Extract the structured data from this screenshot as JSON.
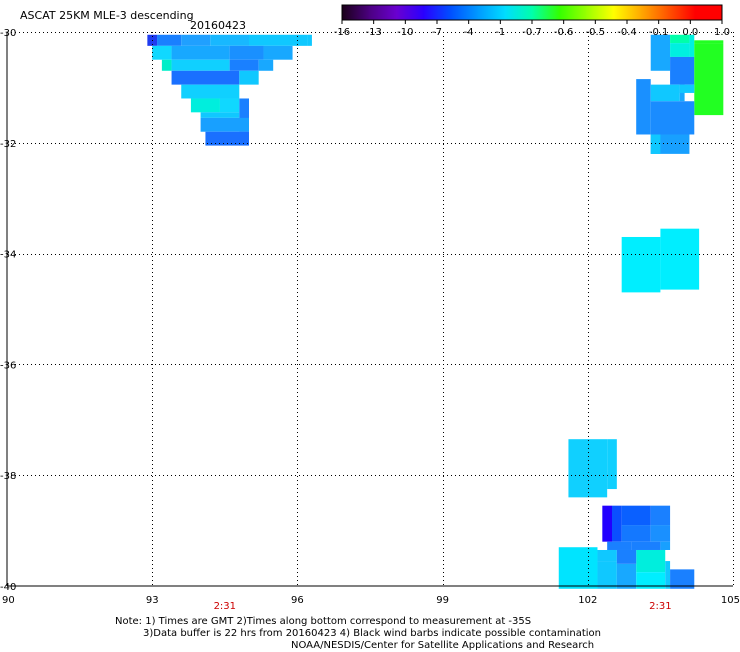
{
  "header": {
    "title": "ASCAT 25KM MLE-3 descending",
    "date": "20160423"
  },
  "colorbar": {
    "ticks": [
      "-16",
      "-13",
      "-10",
      "-7",
      "-4",
      "-1",
      "-0.7",
      "-0.6",
      "-0.5",
      "-0.4",
      "-0.1",
      "0.0",
      "1.0"
    ],
    "colors": [
      "#1a0018",
      "#4b0080",
      "#6a00d0",
      "#2a00ff",
      "#0050ff",
      "#0099ff",
      "#00ddff",
      "#00ffaa",
      "#33ff00",
      "#99ff00",
      "#ffff00",
      "#ffaa00",
      "#ff5500",
      "#ff0000"
    ]
  },
  "chart_data": {
    "type": "heatmap",
    "xlim": [
      90,
      105
    ],
    "ylim": [
      -40,
      -30
    ],
    "x_ticks": [
      "90",
      "93",
      "96",
      "99",
      "102",
      "105"
    ],
    "y_ticks": [
      "-30",
      "-32",
      "-34",
      "-36",
      "-38",
      "-40"
    ],
    "grid": true,
    "time_labels": [
      {
        "lon": 94.5,
        "text": "2:31"
      },
      {
        "lon": 103.5,
        "text": "2:31"
      }
    ],
    "cells": [
      {
        "lon0": 92.9,
        "lon1": 93.1,
        "lat0": -30.25,
        "lat1": -30.05,
        "color": "#1f3cf0"
      },
      {
        "lon0": 93.1,
        "lon1": 93.6,
        "lat0": -30.25,
        "lat1": -30.05,
        "color": "#1a80ff"
      },
      {
        "lon0": 93.6,
        "lon1": 94.2,
        "lat0": -30.25,
        "lat1": -30.05,
        "color": "#20a0ff"
      },
      {
        "lon0": 94.2,
        "lon1": 95.0,
        "lat0": -30.25,
        "lat1": -30.05,
        "color": "#18b8ff"
      },
      {
        "lon0": 95.0,
        "lon1": 96.2,
        "lat0": -30.25,
        "lat1": -30.05,
        "color": "#10c8ff"
      },
      {
        "lon0": 96.2,
        "lon1": 96.3,
        "lat0": -30.25,
        "lat1": -30.05,
        "color": "#10c8ff"
      },
      {
        "lon0": 93.0,
        "lon1": 93.4,
        "lat0": -30.5,
        "lat1": -30.25,
        "color": "#10d8ff"
      },
      {
        "lon0": 93.4,
        "lon1": 94.6,
        "lat0": -30.5,
        "lat1": -30.25,
        "color": "#18a8ff"
      },
      {
        "lon0": 94.6,
        "lon1": 95.3,
        "lat0": -30.5,
        "lat1": -30.25,
        "color": "#1a90ff"
      },
      {
        "lon0": 95.3,
        "lon1": 95.9,
        "lat0": -30.5,
        "lat1": -30.25,
        "color": "#18a8ff"
      },
      {
        "lon0": 93.2,
        "lon1": 93.4,
        "lat0": -30.7,
        "lat1": -30.5,
        "color": "#00eec8"
      },
      {
        "lon0": 93.4,
        "lon1": 94.6,
        "lat0": -30.7,
        "lat1": -30.5,
        "color": "#10d0ff"
      },
      {
        "lon0": 94.6,
        "lon1": 95.2,
        "lat0": -30.7,
        "lat1": -30.5,
        "color": "#1a80ff"
      },
      {
        "lon0": 95.2,
        "lon1": 95.5,
        "lat0": -30.7,
        "lat1": -30.5,
        "color": "#18a8ff"
      },
      {
        "lon0": 93.4,
        "lon1": 94.8,
        "lat0": -30.95,
        "lat1": -30.7,
        "color": "#1a70ff"
      },
      {
        "lon0": 94.8,
        "lon1": 95.2,
        "lat0": -30.95,
        "lat1": -30.7,
        "color": "#10c8ff"
      },
      {
        "lon0": 93.6,
        "lon1": 94.8,
        "lat0": -31.2,
        "lat1": -30.95,
        "color": "#10d0ff"
      },
      {
        "lon0": 93.8,
        "lon1": 94.4,
        "lat0": -31.45,
        "lat1": -31.2,
        "color": "#00eedd"
      },
      {
        "lon0": 94.4,
        "lon1": 94.8,
        "lat0": -31.45,
        "lat1": -31.2,
        "color": "#10d8ff"
      },
      {
        "lon0": 94.0,
        "lon1": 94.8,
        "lat0": -31.55,
        "lat1": -31.45,
        "color": "#10c8ff"
      },
      {
        "lon0": 94.8,
        "lon1": 95.0,
        "lat0": -31.8,
        "lat1": -31.2,
        "color": "#1a80ff"
      },
      {
        "lon0": 94.0,
        "lon1": 95.0,
        "lat0": -31.8,
        "lat1": -31.55,
        "color": "#18a0ff"
      },
      {
        "lon0": 94.1,
        "lon1": 95.0,
        "lat0": -32.05,
        "lat1": -31.8,
        "color": "#1a70ff"
      },
      {
        "lon0": 103.3,
        "lon1": 103.7,
        "lat0": -30.7,
        "lat1": -30.05,
        "color": "#18a8ff"
      },
      {
        "lon0": 103.7,
        "lon1": 104.1,
        "lat0": -30.2,
        "lat1": -30.05,
        "color": "#00ffaa"
      },
      {
        "lon0": 103.7,
        "lon1": 104.1,
        "lat0": -30.45,
        "lat1": -30.2,
        "color": "#00f0e0"
      },
      {
        "lon0": 104.1,
        "lon1": 104.2,
        "lat0": -30.45,
        "lat1": -30.05,
        "color": "#00f0e0"
      },
      {
        "lon0": 103.7,
        "lon1": 104.2,
        "lat0": -30.95,
        "lat1": -30.45,
        "color": "#1a80ff"
      },
      {
        "lon0": 104.2,
        "lon1": 104.8,
        "lat0": -31.5,
        "lat1": -30.2,
        "color": "#22ff22"
      },
      {
        "lon0": 104.2,
        "lon1": 104.8,
        "lat0": -30.2,
        "lat1": -30.15,
        "color": "#22ff22"
      },
      {
        "lon0": 103.0,
        "lon1": 103.3,
        "lat0": -31.85,
        "lat1": -30.85,
        "color": "#1a90ff"
      },
      {
        "lon0": 103.3,
        "lon1": 103.9,
        "lat0": -31.25,
        "lat1": -30.95,
        "color": "#10c8ff"
      },
      {
        "lon0": 103.9,
        "lon1": 104.0,
        "lat0": -31.25,
        "lat1": -30.95,
        "color": "#18a8ff"
      },
      {
        "lon0": 103.9,
        "lon1": 104.2,
        "lat0": -31.1,
        "lat1": -30.95,
        "color": "#10c8ff"
      },
      {
        "lon0": 103.3,
        "lon1": 104.2,
        "lat0": -31.85,
        "lat1": -31.25,
        "color": "#1a8cff"
      },
      {
        "lon0": 103.3,
        "lon1": 104.1,
        "lat0": -32.2,
        "lat1": -31.85,
        "color": "#18a0ff"
      },
      {
        "lon0": 103.3,
        "lon1": 103.5,
        "lat0": -32.2,
        "lat1": -31.85,
        "color": "#10c8ff"
      },
      {
        "lon0": 103.5,
        "lon1": 104.3,
        "lat0": -34.65,
        "lat1": -33.55,
        "color": "#00eeff"
      },
      {
        "lon0": 102.7,
        "lon1": 103.5,
        "lat0": -34.7,
        "lat1": -33.7,
        "color": "#00eeff"
      },
      {
        "lon0": 101.6,
        "lon1": 102.4,
        "lat0": -38.4,
        "lat1": -37.35,
        "color": "#10d0ff"
      },
      {
        "lon0": 102.4,
        "lon1": 102.6,
        "lat0": -38.25,
        "lat1": -37.35,
        "color": "#10d0ff"
      },
      {
        "lon0": 102.3,
        "lon1": 102.5,
        "lat0": -39.2,
        "lat1": -38.55,
        "color": "#2200ff"
      },
      {
        "lon0": 102.5,
        "lon1": 102.7,
        "lat0": -39.2,
        "lat1": -38.55,
        "color": "#0a50ff"
      },
      {
        "lon0": 102.7,
        "lon1": 103.3,
        "lat0": -38.9,
        "lat1": -38.55,
        "color": "#0a60ff"
      },
      {
        "lon0": 103.3,
        "lon1": 103.7,
        "lat0": -38.9,
        "lat1": -38.55,
        "color": "#1a80ff"
      },
      {
        "lon0": 102.7,
        "lon1": 103.3,
        "lat0": -39.2,
        "lat1": -38.9,
        "color": "#1478ff"
      },
      {
        "lon0": 103.3,
        "lon1": 103.7,
        "lat0": -39.2,
        "lat1": -38.9,
        "color": "#1a90ff"
      },
      {
        "lon0": 102.9,
        "lon1": 103.5,
        "lat0": -39.35,
        "lat1": -39.2,
        "color": "#1a80ff"
      },
      {
        "lon0": 102.4,
        "lon1": 102.9,
        "lat0": -39.35,
        "lat1": -39.2,
        "color": "#1a80ff"
      },
      {
        "lon0": 103.5,
        "lon1": 103.7,
        "lat0": -39.35,
        "lat1": -39.2,
        "color": "#18a0ff"
      },
      {
        "lon0": 101.4,
        "lon1": 102.2,
        "lat0": -40.05,
        "lat1": -39.3,
        "color": "#00e4ff"
      },
      {
        "lon0": 102.2,
        "lon1": 102.6,
        "lat0": -40.05,
        "lat1": -39.55,
        "color": "#10c8ff"
      },
      {
        "lon0": 102.2,
        "lon1": 102.6,
        "lat0": -39.55,
        "lat1": -39.35,
        "color": "#10c8ff"
      },
      {
        "lon0": 102.6,
        "lon1": 103.0,
        "lat0": -40.05,
        "lat1": -39.6,
        "color": "#18a8ff"
      },
      {
        "lon0": 103.0,
        "lon1": 103.6,
        "lat0": -39.75,
        "lat1": -39.35,
        "color": "#00eedd"
      },
      {
        "lon0": 103.0,
        "lon1": 103.6,
        "lat0": -40.05,
        "lat1": -39.75,
        "color": "#00eeff"
      },
      {
        "lon0": 103.6,
        "lon1": 103.7,
        "lat0": -40.05,
        "lat1": -39.55,
        "color": "#10c8ff"
      },
      {
        "lon0": 103.7,
        "lon1": 104.2,
        "lat0": -40.05,
        "lat1": -39.7,
        "color": "#1a80ff"
      },
      {
        "lon0": 102.6,
        "lon1": 103.0,
        "lat0": -39.6,
        "lat1": -39.35,
        "color": "#1a80ff"
      }
    ]
  },
  "notes": {
    "line1": "Note: 1) Times are GMT 2)Times along bottom correspond to measurement at -35S",
    "line2": "3)Data buffer is 22 hrs from 20160423 4) Black wind barbs indicate possible contamination",
    "line3": "NOAA/NESDIS/Center for Satellite Applications and Research"
  }
}
